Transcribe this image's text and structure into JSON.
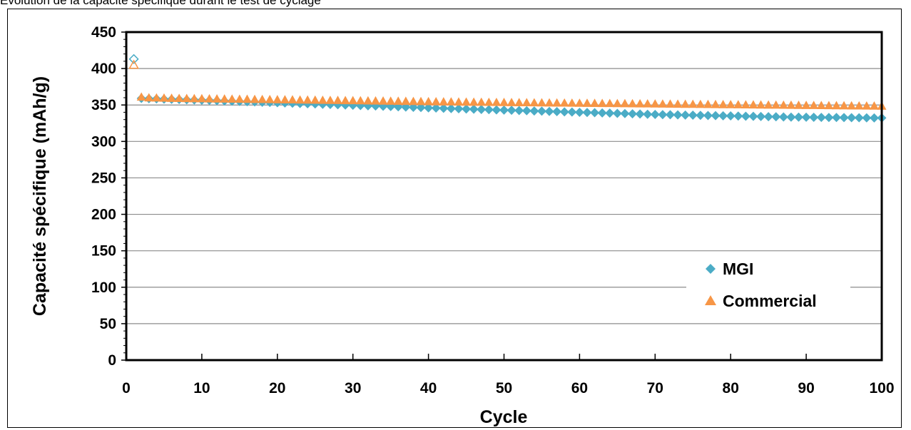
{
  "caption": "Évolution de la capacité spécifique durant le test de cyclage",
  "chart_data": {
    "type": "scatter",
    "title": "",
    "xlabel": "Cycle",
    "ylabel": "Capacité spécifique (mAh/g)",
    "xlim": [
      0,
      100
    ],
    "ylim": [
      0,
      450
    ],
    "xticks": [
      0,
      10,
      20,
      30,
      40,
      50,
      60,
      70,
      80,
      90,
      100
    ],
    "yticks": [
      0,
      50,
      100,
      150,
      200,
      250,
      300,
      350,
      400,
      450
    ],
    "grid": "horizontal",
    "legend_position": "lower-right",
    "series": [
      {
        "name": "MGI",
        "color": "#4bacc6",
        "marker": "diamond",
        "first_point": {
          "x": 1,
          "y": 413
        },
        "x": [
          2,
          3,
          4,
          5,
          6,
          7,
          8,
          9,
          10,
          11,
          12,
          13,
          14,
          15,
          16,
          17,
          18,
          19,
          20,
          21,
          22,
          23,
          24,
          25,
          26,
          27,
          28,
          29,
          30,
          31,
          32,
          33,
          34,
          35,
          36,
          37,
          38,
          39,
          40,
          41,
          42,
          43,
          44,
          45,
          46,
          47,
          48,
          49,
          50,
          51,
          52,
          53,
          54,
          55,
          56,
          57,
          58,
          59,
          60,
          61,
          62,
          63,
          64,
          65,
          66,
          67,
          68,
          69,
          70,
          71,
          72,
          73,
          74,
          75,
          76,
          77,
          78,
          79,
          80,
          81,
          82,
          83,
          84,
          85,
          86,
          87,
          88,
          89,
          90,
          91,
          92,
          93,
          94,
          95,
          96,
          97,
          98,
          99,
          100
        ],
        "y": [
          359.0,
          358.7,
          358.4,
          358.1,
          357.8,
          357.5,
          357.2,
          356.9,
          356.6,
          356.3,
          356.0,
          355.6,
          355.2,
          354.9,
          354.5,
          354.2,
          353.8,
          353.5,
          353.1,
          352.8,
          352.4,
          352.1,
          351.7,
          351.4,
          351.0,
          350.7,
          350.3,
          350.0,
          349.6,
          349.3,
          348.9,
          348.6,
          348.2,
          347.9,
          347.5,
          347.2,
          346.8,
          346.5,
          346.1,
          345.8,
          345.4,
          345.1,
          344.8,
          344.5,
          344.2,
          343.9,
          343.6,
          343.3,
          343.0,
          342.7,
          342.4,
          342.1,
          341.8,
          341.5,
          341.2,
          340.9,
          340.6,
          340.3,
          340.0,
          339.7,
          339.4,
          339.1,
          338.8,
          338.5,
          338.2,
          337.9,
          337.6,
          337.3,
          337.0,
          336.8,
          336.6,
          336.4,
          336.2,
          336.0,
          335.8,
          335.6,
          335.4,
          335.2,
          335.0,
          334.8,
          334.6,
          334.4,
          334.2,
          334.0,
          333.8,
          333.6,
          333.4,
          333.3,
          333.2,
          333.1,
          333.0,
          332.9,
          332.8,
          332.7,
          332.6,
          332.5,
          332.4,
          332.3,
          332.2
        ]
      },
      {
        "name": "Commercial",
        "color": "#f79646",
        "marker": "triangle",
        "first_point": {
          "x": 1,
          "y": 405
        },
        "x": [
          2,
          3,
          4,
          5,
          6,
          7,
          8,
          9,
          10,
          11,
          12,
          13,
          14,
          15,
          16,
          17,
          18,
          19,
          20,
          21,
          22,
          23,
          24,
          25,
          26,
          27,
          28,
          29,
          30,
          31,
          32,
          33,
          34,
          35,
          36,
          37,
          38,
          39,
          40,
          41,
          42,
          43,
          44,
          45,
          46,
          47,
          48,
          49,
          50,
          51,
          52,
          53,
          54,
          55,
          56,
          57,
          58,
          59,
          60,
          61,
          62,
          63,
          64,
          65,
          66,
          67,
          68,
          69,
          70,
          71,
          72,
          73,
          74,
          75,
          76,
          77,
          78,
          79,
          80,
          81,
          82,
          83,
          84,
          85,
          86,
          87,
          88,
          89,
          90,
          91,
          92,
          93,
          94,
          95,
          96,
          97,
          98,
          99,
          100
        ],
        "y": [
          361.0,
          360.0,
          359.8,
          359.6,
          359.4,
          359.2,
          359.0,
          358.9,
          358.8,
          358.6,
          358.5,
          358.4,
          358.2,
          358.1,
          358.0,
          357.8,
          357.7,
          357.6,
          357.4,
          357.3,
          357.2,
          357.0,
          356.9,
          356.8,
          356.6,
          356.5,
          356.4,
          356.2,
          356.1,
          356.0,
          355.8,
          355.7,
          355.6,
          355.4,
          355.3,
          355.2,
          355.0,
          354.9,
          354.8,
          354.6,
          354.5,
          354.4,
          354.2,
          354.1,
          354.0,
          353.9,
          353.8,
          353.7,
          353.6,
          353.5,
          353.4,
          353.3,
          353.2,
          353.1,
          353.0,
          352.9,
          352.8,
          352.7,
          352.6,
          352.5,
          352.4,
          352.3,
          352.2,
          352.1,
          352.0,
          351.9,
          351.8,
          351.7,
          351.6,
          351.5,
          351.4,
          351.3,
          351.2,
          351.1,
          351.0,
          350.9,
          350.8,
          350.7,
          350.6,
          350.5,
          350.4,
          350.3,
          350.2,
          350.1,
          350.0,
          349.9,
          349.8,
          349.7,
          349.6,
          349.5,
          349.4,
          349.3,
          349.2,
          349.1,
          349.0,
          348.9,
          348.8,
          348.7,
          348.6
        ]
      }
    ]
  }
}
